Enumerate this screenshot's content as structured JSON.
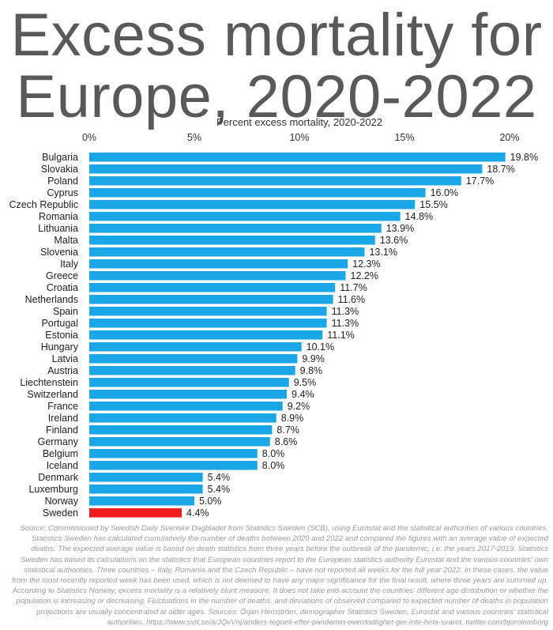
{
  "title_line1": "Excess mortality for",
  "title_line2": "Europe, 2020-2022",
  "chart_data": {
    "type": "bar",
    "orientation": "horizontal",
    "xlabel": "Percent excess mortality, 2020-2022",
    "xlim": [
      0,
      20
    ],
    "ticks": [
      "0%",
      "5%",
      "10%",
      "15%",
      "20%"
    ],
    "tick_values": [
      0,
      5,
      10,
      15,
      20
    ],
    "grid": false,
    "bar_color": "#1aa7e8",
    "highlight_color": "#ee1c1c",
    "highlight_category": "Sweden",
    "categories": [
      "Bulgaria",
      "Slovakia",
      "Poland",
      "Cyprus",
      "Czech Republic",
      "Romania",
      "Lithuania",
      "Malta",
      "Slovenia",
      "Italy",
      "Greece",
      "Croatia",
      "Netherlands",
      "Spain",
      "Portugal",
      "Estonia",
      "Hungary",
      "Latvia",
      "Austria",
      "Liechtenstein",
      "Switzerland",
      "France",
      "Ireland",
      "Finland",
      "Germany",
      "Belgium",
      "Iceland",
      "Denmark",
      "Luxemburg",
      "Norway",
      "Sweden"
    ],
    "values": [
      19.8,
      18.7,
      17.7,
      16.0,
      15.5,
      14.8,
      13.9,
      13.6,
      13.1,
      12.3,
      12.2,
      11.7,
      11.6,
      11.3,
      11.3,
      11.1,
      10.1,
      9.9,
      9.8,
      9.5,
      9.4,
      9.2,
      8.9,
      8.7,
      8.6,
      8.0,
      8.0,
      5.4,
      5.4,
      5.0,
      4.4
    ],
    "data_labels": [
      "19.8%",
      "18.7%",
      "17.7%",
      "16.0%",
      "15.5%",
      "14.8%",
      "13.9%",
      "13.6%",
      "13.1%",
      "12.3%",
      "12.2%",
      "11.7%",
      "11.6%",
      "11.3%",
      "11.3%",
      "11.1%",
      "10.1%",
      "9.9%",
      "9.8%",
      "9.5%",
      "9.4%",
      "9.2%",
      "8.9%",
      "8.7%",
      "8.6%",
      "8.0%",
      "8.0%",
      "5.4%",
      "5.4%",
      "5.0%",
      "4.4%"
    ]
  },
  "source_text": "Source: Commissioned by Swedish Daily Svenske Dagbladet from Statistics Sweden (SCB), using Eurostat and the statistical authorities of various countries. Statistics Sweden has calculated cumulatively the number of deaths between 2020 and 2022 and compared the figures with an average value of expected deaths. The expected average value is based on death statistics from three years before the outbreak of the pandemic, i.e. the years 2017-2019. Statistics Sweden has based its calculations on the statistics that European countries report to the European statistics authority Eurostat and the various countries' own statistical authorities. Three countries – Italy, Romania and the Czech Republic – have not reported all weeks for the full year 2022. In these cases, the value from the most recently reported week has been used, which is not deemed to have any major significance for the final result, where three years are summed up. According to Statistics Norway, excess mortality is a relatively blunt measure. It does not take into account the countries' different age distribution or whether the population is increasing or decreasing. Fluctuations in the number of deaths, and deviations of observed compared to expected number of deaths in population projections are usually concentrated at older ages. Sources: Örjan Hemström, demographer Statistics Sweden, Eurostat and various countries' statistical authorities. https://www.svd.se/a/JQvVnj/anders-tegnell-efter-pandemin-overdodlighet-ger-inte-hela-svaret. twitter.com/bjornlomborg"
}
